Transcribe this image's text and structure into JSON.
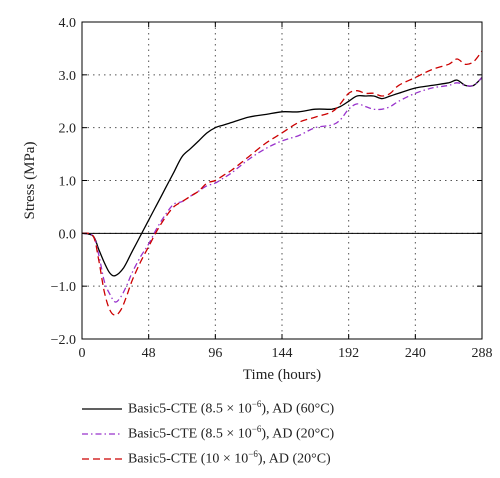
{
  "chart_data": {
    "type": "line",
    "title": "",
    "xlabel": "Time (hours)",
    "ylabel": "Stress (MPa)",
    "xlim": [
      0,
      288
    ],
    "ylim": [
      -2.0,
      4.0
    ],
    "xticks": [
      0,
      48,
      96,
      144,
      192,
      240,
      288
    ],
    "xtick_labels": [
      "0",
      "48",
      "96",
      "144",
      "192",
      "240",
      "288"
    ],
    "yticks": [
      -2.0,
      -1.0,
      0.0,
      1.0,
      2.0,
      3.0,
      4.0
    ],
    "ytick_labels": [
      "−2.0",
      "−1.0",
      "0.0",
      "1.0",
      "2.0",
      "3.0",
      "4.0"
    ],
    "grid": true,
    "legend_position": "bottom",
    "series": [
      {
        "name": "Basic5-CTE (8.5 × 10−6), AD (60°C)",
        "color": "#000000",
        "dash": "solid",
        "x": [
          0,
          8,
          12,
          16,
          20,
          24,
          30,
          36,
          42,
          48,
          54,
          60,
          66,
          72,
          78,
          84,
          90,
          96,
          102,
          108,
          120,
          132,
          144,
          156,
          168,
          180,
          186,
          192,
          198,
          204,
          210,
          216,
          222,
          228,
          240,
          252,
          264,
          270,
          276,
          282,
          288
        ],
        "y": [
          0.0,
          -0.05,
          -0.3,
          -0.55,
          -0.75,
          -0.8,
          -0.65,
          -0.35,
          -0.05,
          0.25,
          0.55,
          0.85,
          1.15,
          1.45,
          1.6,
          1.75,
          1.9,
          2.0,
          2.05,
          2.1,
          2.2,
          2.25,
          2.3,
          2.3,
          2.35,
          2.35,
          2.4,
          2.5,
          2.6,
          2.6,
          2.6,
          2.55,
          2.6,
          2.65,
          2.75,
          2.8,
          2.85,
          2.9,
          2.8,
          2.8,
          2.95
        ]
      },
      {
        "name": "Basic5-CTE (8.5 × 10−6), AD (20°C)",
        "color": "#9933cc",
        "dash": "dashdot",
        "x": [
          0,
          8,
          12,
          16,
          20,
          24,
          28,
          32,
          36,
          42,
          48,
          54,
          60,
          66,
          72,
          78,
          84,
          90,
          96,
          102,
          108,
          120,
          132,
          144,
          156,
          168,
          180,
          186,
          192,
          198,
          204,
          210,
          216,
          222,
          228,
          240,
          252,
          264,
          270,
          276,
          282,
          288
        ],
        "y": [
          0.0,
          -0.05,
          -0.4,
          -0.9,
          -1.15,
          -1.3,
          -1.2,
          -1.0,
          -0.75,
          -0.45,
          -0.2,
          0.1,
          0.35,
          0.55,
          0.6,
          0.7,
          0.8,
          0.9,
          0.95,
          1.05,
          1.15,
          1.4,
          1.6,
          1.75,
          1.85,
          2.0,
          2.05,
          2.15,
          2.35,
          2.45,
          2.4,
          2.35,
          2.35,
          2.4,
          2.5,
          2.65,
          2.75,
          2.8,
          2.85,
          2.8,
          2.8,
          2.95
        ]
      },
      {
        "name": "Basic5-CTE (10 × 10−6), AD (20°C)",
        "color": "#cc0000",
        "dash": "dashed",
        "x": [
          0,
          8,
          12,
          16,
          20,
          24,
          28,
          32,
          36,
          42,
          48,
          54,
          60,
          66,
          72,
          78,
          84,
          90,
          96,
          102,
          108,
          120,
          132,
          144,
          156,
          168,
          180,
          186,
          192,
          198,
          204,
          210,
          216,
          222,
          228,
          240,
          252,
          264,
          270,
          276,
          282,
          288
        ],
        "y": [
          0.0,
          -0.05,
          -0.5,
          -1.1,
          -1.45,
          -1.55,
          -1.45,
          -1.2,
          -0.9,
          -0.55,
          -0.25,
          0.05,
          0.3,
          0.5,
          0.6,
          0.7,
          0.8,
          0.95,
          1.0,
          1.1,
          1.2,
          1.45,
          1.7,
          1.9,
          2.1,
          2.2,
          2.3,
          2.45,
          2.65,
          2.7,
          2.65,
          2.65,
          2.6,
          2.65,
          2.8,
          2.95,
          3.1,
          3.2,
          3.3,
          3.2,
          3.25,
          3.45
        ]
      }
    ]
  }
}
